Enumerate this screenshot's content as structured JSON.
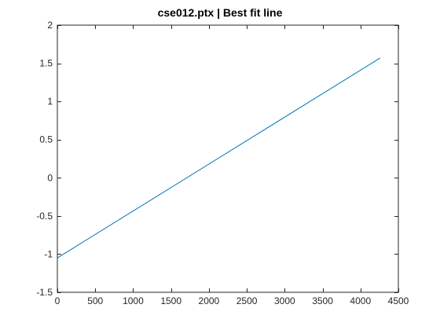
{
  "chart_data": {
    "type": "line",
    "title": "cse012.ptx | Best fit line",
    "xlabel": "",
    "ylabel": "",
    "xlim": [
      0,
      4500
    ],
    "ylim": [
      -1.5,
      2
    ],
    "xticks": [
      0,
      500,
      1000,
      1500,
      2000,
      2500,
      3000,
      3500,
      4000,
      4500
    ],
    "xtick_labels": [
      "0",
      "500",
      "1000",
      "1500",
      "2000",
      "2500",
      "3000",
      "3500",
      "4000",
      "4500"
    ],
    "yticks": [
      -1.5,
      -1,
      -0.5,
      0,
      0.5,
      1,
      1.5,
      2
    ],
    "ytick_labels": [
      "-1.5",
      "-1",
      "-0.5",
      "0",
      "0.5",
      "1",
      "1.5",
      "2"
    ],
    "grid": false,
    "series": [
      {
        "x": [
          0,
          4260
        ],
        "y": [
          -1.05,
          1.57
        ],
        "color": "#0072BD"
      }
    ]
  }
}
